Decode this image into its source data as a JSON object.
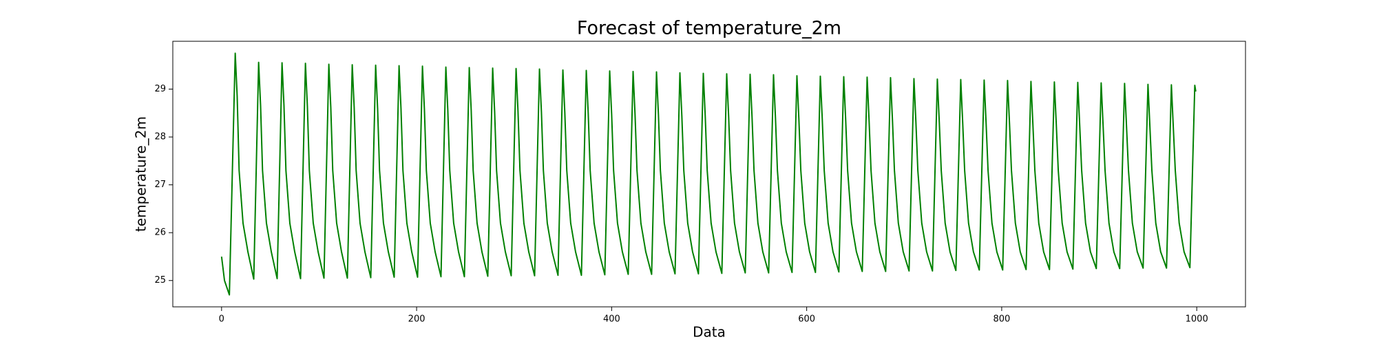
{
  "chart_data": {
    "type": "line",
    "title": "Forecast of temperature_2m",
    "xlabel": "Data",
    "ylabel": "temperature_2m",
    "color": "#008000",
    "xlim": [
      -50,
      1050
    ],
    "ylim": [
      24.45,
      30.0
    ],
    "xticks": [
      0,
      200,
      400,
      600,
      800,
      1000
    ],
    "yticks": [
      25,
      26,
      27,
      28,
      29
    ],
    "grid": false,
    "x": [
      0,
      3,
      8,
      14,
      16,
      18,
      22,
      27,
      33,
      38,
      40,
      42,
      46,
      51,
      57,
      62,
      64,
      66,
      70,
      75,
      81,
      86,
      88,
      90,
      94,
      99,
      105,
      110,
      112,
      114,
      118,
      123,
      129,
      134,
      136,
      138,
      142,
      147,
      153,
      158,
      160,
      162,
      166,
      171,
      177,
      182,
      184,
      186,
      190,
      195,
      201,
      206,
      208,
      210,
      214,
      219,
      225,
      230,
      232,
      234,
      238,
      243,
      249,
      254,
      256,
      258,
      262,
      267,
      273,
      278,
      280,
      282,
      286,
      291,
      297,
      302,
      304,
      306,
      310,
      315,
      321,
      326,
      328,
      330,
      334,
      339,
      345,
      350,
      352,
      354,
      358,
      363,
      369,
      374,
      376,
      378,
      382,
      387,
      393,
      398,
      400,
      402,
      406,
      411,
      417,
      422,
      424,
      426,
      430,
      435,
      441,
      446,
      448,
      450,
      454,
      459,
      465,
      470,
      472,
      474,
      478,
      483,
      489,
      494,
      496,
      498,
      502,
      507,
      513,
      518,
      520,
      522,
      526,
      531,
      537,
      542,
      544,
      546,
      550,
      555,
      561,
      566,
      568,
      570,
      574,
      579,
      585,
      590,
      592,
      594,
      598,
      603,
      609,
      614,
      616,
      618,
      622,
      627,
      633,
      638,
      640,
      642,
      646,
      651,
      657,
      662,
      664,
      666,
      670,
      675,
      681,
      686,
      688,
      690,
      694,
      699,
      705,
      710,
      712,
      714,
      718,
      723,
      729,
      734,
      736,
      738,
      742,
      747,
      753,
      758,
      760,
      762,
      766,
      771,
      777,
      782,
      784,
      786,
      790,
      795,
      801,
      806,
      808,
      810,
      814,
      819,
      825,
      830,
      832,
      834,
      838,
      843,
      849,
      854,
      856,
      858,
      862,
      867,
      873,
      878,
      880,
      882,
      886,
      891,
      897,
      902,
      904,
      906,
      910,
      915,
      921,
      926,
      928,
      930,
      934,
      939,
      945,
      950,
      952,
      954,
      958,
      963,
      969,
      974,
      976,
      978,
      982,
      987,
      993,
      998,
      999
    ],
    "values": [
      25.5,
      25.0,
      24.7,
      29.75,
      28.85,
      27.3,
      26.2,
      25.6,
      25.03,
      29.56,
      28.66,
      27.3,
      26.2,
      25.6,
      25.04,
      29.55,
      28.65,
      27.3,
      26.2,
      25.6,
      25.04,
      29.54,
      28.64,
      27.3,
      26.2,
      25.6,
      25.05,
      29.52,
      28.62,
      27.3,
      26.2,
      25.6,
      25.05,
      29.51,
      28.61,
      27.3,
      26.2,
      25.6,
      25.06,
      29.5,
      28.6,
      27.3,
      26.2,
      25.6,
      25.07,
      29.49,
      28.59,
      27.3,
      26.2,
      25.6,
      25.07,
      29.48,
      28.58,
      27.3,
      26.2,
      25.6,
      25.08,
      29.46,
      28.56,
      27.3,
      26.2,
      25.6,
      25.08,
      29.45,
      28.55,
      27.3,
      26.2,
      25.6,
      25.09,
      29.44,
      28.54,
      27.3,
      26.2,
      25.6,
      25.1,
      29.43,
      28.53,
      27.3,
      26.2,
      25.6,
      25.1,
      29.42,
      28.52,
      27.3,
      26.2,
      25.6,
      25.11,
      29.4,
      28.5,
      27.3,
      26.2,
      25.6,
      25.11,
      29.39,
      28.49,
      27.3,
      26.2,
      25.6,
      25.12,
      29.38,
      28.48,
      27.3,
      26.2,
      25.6,
      25.13,
      29.37,
      28.47,
      27.3,
      26.2,
      25.6,
      25.13,
      29.36,
      28.46,
      27.3,
      26.2,
      25.6,
      25.14,
      29.34,
      28.44,
      27.3,
      26.2,
      25.6,
      25.14,
      29.33,
      28.43,
      27.3,
      26.2,
      25.6,
      25.15,
      29.32,
      28.42,
      27.3,
      26.2,
      25.6,
      25.16,
      29.31,
      28.41,
      27.3,
      26.2,
      25.6,
      25.16,
      29.3,
      28.4,
      27.3,
      26.2,
      25.6,
      25.17,
      29.28,
      28.38,
      27.3,
      26.2,
      25.6,
      25.17,
      29.27,
      28.37,
      27.3,
      26.2,
      25.6,
      25.18,
      29.26,
      28.36,
      27.3,
      26.2,
      25.6,
      25.19,
      29.25,
      28.35,
      27.3,
      26.2,
      25.6,
      25.19,
      29.24,
      28.34,
      27.3,
      26.2,
      25.6,
      25.2,
      29.22,
      28.32,
      27.3,
      26.2,
      25.6,
      25.2,
      29.21,
      28.31,
      27.3,
      26.2,
      25.6,
      25.21,
      29.2,
      28.3,
      27.3,
      26.2,
      25.6,
      25.22,
      29.19,
      28.29,
      27.3,
      26.2,
      25.6,
      25.22,
      29.18,
      28.28,
      27.3,
      26.2,
      25.6,
      25.23,
      29.16,
      28.26,
      27.3,
      26.2,
      25.6,
      25.23,
      29.15,
      28.25,
      27.3,
      26.2,
      25.6,
      25.24,
      29.14,
      28.24,
      27.3,
      26.2,
      25.6,
      25.25,
      29.13,
      28.23,
      27.3,
      26.2,
      25.6,
      25.25,
      29.12,
      28.22,
      27.3,
      26.2,
      25.6,
      25.26,
      29.1,
      28.2,
      27.3,
      26.2,
      25.6,
      25.26,
      29.09,
      28.19,
      27.3,
      26.2,
      25.6,
      25.27,
      29.08,
      28.95
    ]
  }
}
